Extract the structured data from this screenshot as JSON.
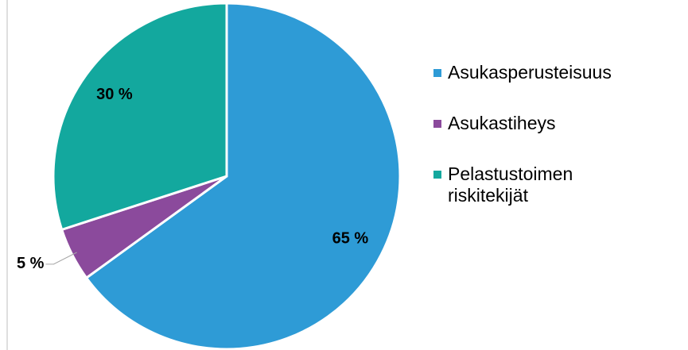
{
  "chart_data": {
    "type": "pie",
    "categories": [
      "Asukasperusteisuus",
      "Asukastiheys",
      "Pelastustoimen riskitekijät"
    ],
    "values": [
      65,
      5,
      30
    ],
    "value_labels": [
      "65 %",
      "5 %",
      "30 %"
    ],
    "colors": [
      "#2e9bd6",
      "#8b4a9c",
      "#13a89e"
    ],
    "legend": "right"
  }
}
